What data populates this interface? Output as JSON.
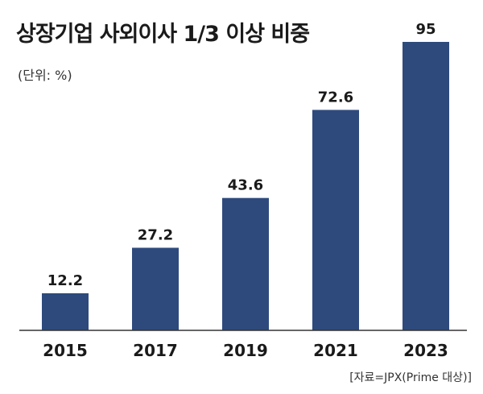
{
  "title": "상장기업 사외이사 1/3 이상 비중",
  "unit": "(단위: %)",
  "source": "[자료=JPX(Prime 대상)]",
  "colors": {
    "bar": "#2e4a7d",
    "axis": "#333333",
    "text": "#1a1a1a"
  },
  "chart_data": {
    "type": "bar",
    "title": "상장기업 사외이사 1/3 이상 비중",
    "ylabel": "(단위: %)",
    "xlabel": "",
    "categories": [
      "2015",
      "2017",
      "2019",
      "2021",
      "2023"
    ],
    "values": [
      12.2,
      27.2,
      43.6,
      72.6,
      95
    ],
    "value_labels": [
      "12.2",
      "27.2",
      "43.6",
      "72.6",
      "95"
    ],
    "ylim": [
      0,
      100
    ],
    "grid": false,
    "legend": "none"
  }
}
